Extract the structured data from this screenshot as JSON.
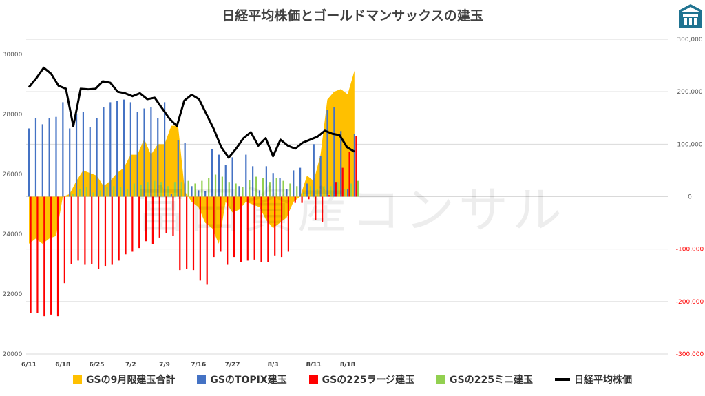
{
  "title": "日経平均株価とゴールドマンサックスの建玉",
  "watermark": "富田資産コンサル",
  "colors": {
    "sep_total": "#ffc000",
    "topix": "#4472c4",
    "large225": "#ff0000",
    "mini225": "#92d050",
    "nikkei": "#000000",
    "negative_axis_text": "#ff0000",
    "logo": "#1f7391"
  },
  "chart_data": {
    "type": "combo",
    "title": "日経平均株価とゴールドマンサックスの建玉",
    "x_ticks": [
      "6/11",
      "6/18",
      "6/25",
      "7/2",
      "7/9",
      "7/16",
      "7/27",
      "8/3",
      "8/11",
      "8/18"
    ],
    "left_axis": {
      "ticks": [
        "20000",
        "22000",
        "24000",
        "26000",
        "28000",
        "30000"
      ],
      "ylim": [
        20000,
        30500
      ]
    },
    "right_axis": {
      "ticks": [
        "300,000",
        "200,000",
        "100,000",
        "0",
        "-100,000",
        "-200,000",
        "-300,000"
      ],
      "ylim": [
        -300000,
        300000
      ]
    },
    "series": [
      {
        "name": "GSの9月限建玉合計",
        "kind": "area",
        "axis": "right",
        "values": [
          -90000,
          -80000,
          -90000,
          -80000,
          -75000,
          0,
          5000,
          30000,
          50000,
          45000,
          40000,
          20000,
          30000,
          45000,
          55000,
          80000,
          80000,
          110000,
          80000,
          100000,
          100000,
          135000,
          135000,
          10000,
          -10000,
          -20000,
          -50000,
          -60000,
          -90000,
          -10000,
          -30000,
          -25000,
          -10000,
          -15000,
          -20000,
          -45000,
          -60000,
          -50000,
          -40000,
          -10000,
          0,
          40000,
          30000,
          80000,
          185000,
          200000,
          205000,
          195000,
          240000
        ]
      },
      {
        "name": "GSのTOPIX建玉",
        "kind": "bar",
        "axis": "right",
        "values": [
          130000,
          150000,
          138000,
          150000,
          152000,
          180000,
          130000,
          158000,
          162000,
          132000,
          150000,
          170000,
          180000,
          182000,
          185000,
          180000,
          162000,
          168000,
          170000,
          150000,
          180000,
          5000,
          108000,
          102000,
          20000,
          12000,
          10000,
          90000,
          80000,
          60000,
          75000,
          20000,
          80000,
          58000,
          12000,
          58000,
          45000,
          35000,
          15000,
          50000,
          55000,
          25000,
          100000,
          78000,
          165000,
          170000,
          125000,
          15000,
          120000
        ]
      },
      {
        "name": "GSの225ラージ建玉",
        "kind": "bar",
        "axis": "right",
        "values": [
          -222000,
          -222000,
          -228000,
          -225000,
          -228000,
          -165000,
          -128000,
          -122000,
          -130000,
          -128000,
          -138000,
          -132000,
          -130000,
          -122000,
          -110000,
          -105000,
          -98000,
          -85000,
          -90000,
          -78000,
          -70000,
          -75000,
          -140000,
          -138000,
          -140000,
          -160000,
          -168000,
          -115000,
          -105000,
          -130000,
          -115000,
          -125000,
          -122000,
          -120000,
          -125000,
          -125000,
          -112000,
          -115000,
          -105000,
          -12000,
          -12000,
          -5000,
          -45000,
          -48000,
          3000,
          28000,
          55000,
          85000,
          115000
        ]
      },
      {
        "name": "GSの225ミニ建玉",
        "kind": "bar",
        "axis": "right",
        "values": [
          0,
          0,
          0,
          0,
          0,
          0,
          5000,
          15000,
          18000,
          8000,
          12000,
          18000,
          20000,
          18000,
          15000,
          25000,
          22000,
          28000,
          30000,
          28000,
          20000,
          28000,
          28000,
          30000,
          25000,
          30000,
          35000,
          42000,
          38000,
          28000,
          25000,
          18000,
          32000,
          38000,
          35000,
          28000,
          35000,
          30000,
          25000,
          20000,
          8000,
          20000,
          15000,
          20000,
          20000,
          28000,
          15000,
          25000,
          30000
        ]
      },
      {
        "name": "日経平均株価",
        "kind": "line",
        "axis": "left",
        "values": [
          28900,
          29200,
          29550,
          29350,
          28950,
          28850,
          27600,
          28850,
          28830,
          28850,
          29100,
          29050,
          28750,
          28700,
          28600,
          28700,
          28500,
          28550,
          28200,
          27850,
          27600,
          28450,
          28650,
          28500,
          28000,
          27500,
          26900,
          26550,
          26850,
          27200,
          27400,
          26950,
          27200,
          26600,
          27150,
          26950,
          26850,
          27050,
          27150,
          27250,
          27450,
          27350,
          27300,
          26900,
          26750
        ]
      }
    ],
    "legend": [
      "GSの9月限建玉合計",
      "GSのTOPIX建玉",
      "GSの225ラージ建玉",
      "GSの225ミニ建玉",
      "日経平均株価"
    ],
    "legend_position": "bottom",
    "grid": true
  }
}
